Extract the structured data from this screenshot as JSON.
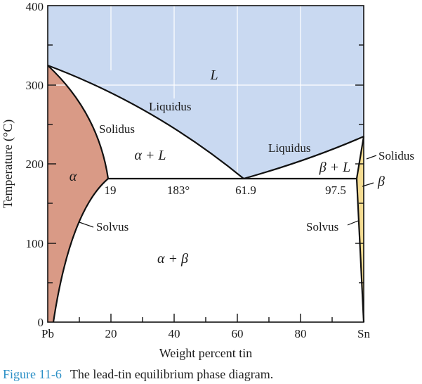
{
  "title": "The lead-tin equilibrium phase diagram.",
  "figure_label": "Figure 11-6",
  "axes": {
    "xlabel": "Weight percent tin",
    "ylabel": "Temperature (°C)",
    "x_left_label": "Pb",
    "x_right_label": "Sn",
    "x_ticks": [
      "20",
      "40",
      "60",
      "80"
    ],
    "y_ticks": [
      "0",
      "100",
      "200",
      "300",
      "400"
    ]
  },
  "regions": {
    "liquid": "L",
    "alpha": "α",
    "beta": "β",
    "alpha_liquid": "α + L",
    "beta_liquid": "β + L",
    "alpha_beta": "α + β"
  },
  "line_labels": {
    "liquidus_left": "Liquidus",
    "liquidus_right": "Liquidus",
    "solidus_left": "Solidus",
    "solidus_right": "Solidus",
    "solvus_left": "Solvus",
    "solvus_right": "Solvus"
  },
  "points": {
    "eutectic_alpha": "19",
    "eutectic_temp": "183°",
    "eutectic_comp": "61.9",
    "eutectic_beta": "97.5"
  },
  "colors": {
    "liquid": "#c9d9f1",
    "alpha": "#d99a86",
    "beta": "#f5dc92",
    "caption_accent": "#2a8fc6"
  }
}
